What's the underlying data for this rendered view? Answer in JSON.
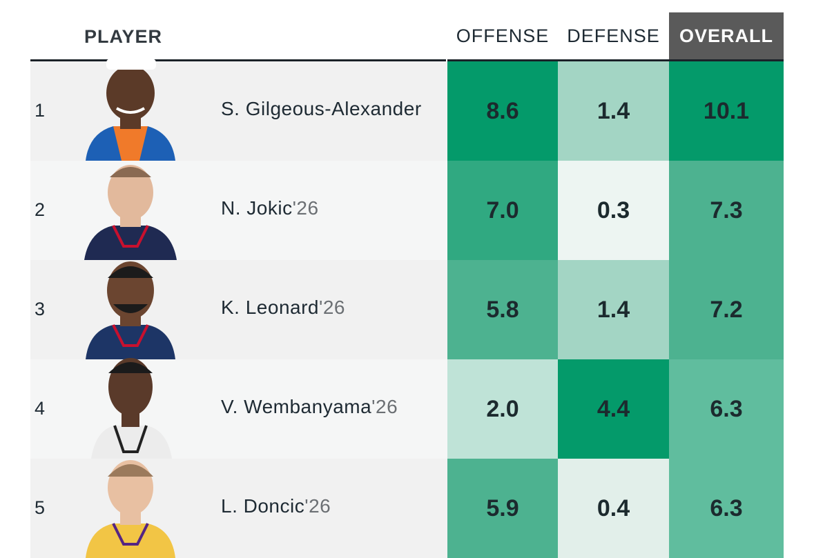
{
  "header": {
    "player": "PLAYER",
    "offense": "OFFENSE",
    "defense": "DEFENSE",
    "overall": "OVERALL"
  },
  "colors": {
    "dark_green": "#049a6a",
    "mid_green": "#30a981",
    "green": "#4db290",
    "light_green": "#60bd9e",
    "pale_green": "#a3d5c4",
    "very_pale_green": "#bfe3d7",
    "near_white_green": "#e2efea",
    "lightest": "#edf5f2"
  },
  "rows": [
    {
      "rank": "1",
      "name": "S. Gilgeous-Alexander",
      "year": "",
      "offense": "8.6",
      "defense": "1.4",
      "overall": "10.1",
      "jersey": "#1d60b5",
      "skin": "#5b3a28"
    },
    {
      "rank": "2",
      "name": "N. Jokic",
      "year": "'26",
      "offense": "7.0",
      "defense": "0.3",
      "overall": "7.3",
      "jersey": "#1f2a52",
      "skin": "#e2b99c"
    },
    {
      "rank": "3",
      "name": "K. Leonard",
      "year": "'26",
      "offense": "5.8",
      "defense": "1.4",
      "overall": "7.2",
      "jersey": "#1d3566",
      "skin": "#6b4530"
    },
    {
      "rank": "4",
      "name": "V. Wembanyama",
      "year": "'26",
      "offense": "2.0",
      "defense": "4.4",
      "overall": "6.3",
      "jersey": "#ececec",
      "skin": "#5a3a2a"
    },
    {
      "rank": "5",
      "name": "L. Doncic",
      "year": "'26",
      "offense": "5.9",
      "defense": "0.4",
      "overall": "6.3",
      "jersey": "#f2c545",
      "skin": "#e8c0a2"
    }
  ]
}
